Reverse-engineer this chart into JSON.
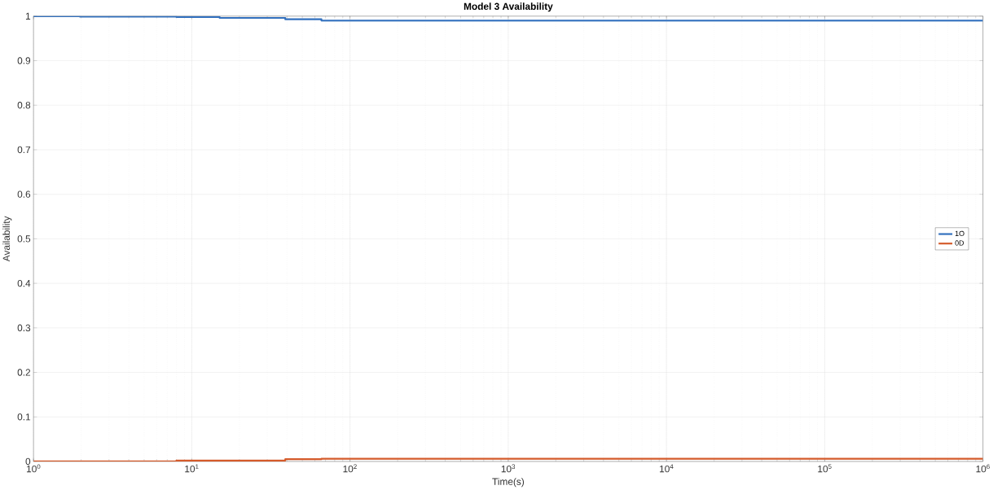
{
  "chart_data": {
    "type": "step",
    "title": "Model 3 Availability",
    "xlabel": "Time(s)",
    "ylabel": "Availability",
    "x": [
      1,
      1.96,
      8,
      15,
      39,
      66,
      1000000
    ],
    "series": [
      {
        "name": "1O",
        "color": "#3270be",
        "values": [
          1,
          0.999,
          0.998,
          0.996,
          0.993,
          0.99,
          0.99
        ]
      },
      {
        "name": "0D",
        "color": "#d45a2a",
        "values": [
          0,
          0,
          0.002,
          0.002,
          0.005,
          0.006,
          0.006
        ]
      }
    ],
    "log": "x",
    "xlim": [
      1,
      1000000
    ],
    "ylim": [
      0,
      1
    ],
    "xticks": [
      {
        "value": 1,
        "label": "10$^{0}$"
      },
      {
        "value": 10,
        "label": "10$^{1}$"
      },
      {
        "value": 100,
        "label": "10$^{2}$"
      },
      {
        "value": 1000,
        "label": "10$^{3}$"
      },
      {
        "value": 10000,
        "label": "10$^{4}$"
      },
      {
        "value": 100000,
        "label": "10$^{5}$"
      },
      {
        "value": 1000000,
        "label": "10$^{6}$"
      }
    ],
    "yticks": [
      0,
      0.1,
      0.2,
      0.3,
      0.4,
      0.5,
      0.6,
      0.7,
      0.8,
      0.9,
      1
    ],
    "grid": true,
    "legend": "right"
  }
}
